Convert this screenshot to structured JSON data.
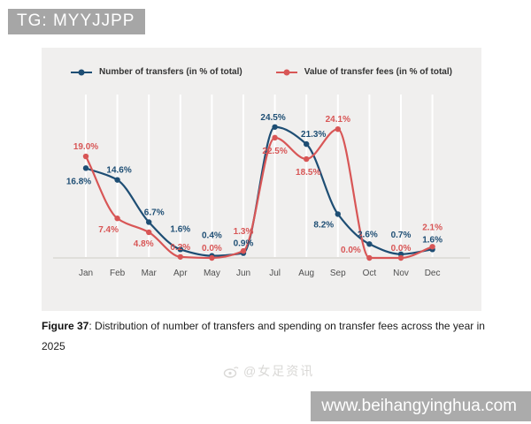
{
  "banner": {
    "text": "TG: MYYJJPP"
  },
  "footer_bar": {
    "text": "www.beihangyinghua.com"
  },
  "watermark": {
    "icon": "weibo-icon",
    "text": "@女足资讯"
  },
  "caption": {
    "bold": "Figure 37",
    "text": ": Distribution of number of transfers and spending on transfer fees across the year in 2025"
  },
  "chart_data": {
    "type": "line",
    "title": "",
    "xlabel": "",
    "ylabel": "",
    "ylim": [
      0,
      27
    ],
    "grid": "vertical-white-gridlines",
    "legend_position": "top-center",
    "value_suffix": "%",
    "categories": [
      "Jan",
      "Feb",
      "Mar",
      "Apr",
      "May",
      "Jun",
      "Jul",
      "Aug",
      "Sep",
      "Oct",
      "Nov",
      "Dec"
    ],
    "series": [
      {
        "name": "Number of transfers (in % of total)",
        "color": "#1e4e74",
        "values": [
          16.8,
          14.6,
          6.7,
          1.6,
          0.4,
          0.9,
          24.5,
          21.3,
          8.2,
          2.6,
          0.7,
          1.6
        ],
        "label_offsets": [
          [
            -8,
            18
          ],
          [
            2,
            -8
          ],
          [
            6,
            -8
          ],
          [
            0,
            -20
          ],
          [
            0,
            -20
          ],
          [
            0,
            -8
          ],
          [
            -2,
            -8
          ],
          [
            8,
            -8
          ],
          [
            -16,
            15
          ],
          [
            -2,
            -8
          ],
          [
            0,
            -19
          ],
          [
            0,
            -8
          ]
        ]
      },
      {
        "name": "Value of transfer fees (in % of total)",
        "color": "#d85656",
        "values": [
          19.0,
          7.4,
          4.8,
          0.2,
          0.0,
          1.3,
          22.5,
          18.5,
          24.1,
          0.0,
          0.0,
          2.1
        ],
        "label_offsets": [
          [
            0,
            -8
          ],
          [
            -10,
            16
          ],
          [
            -6,
            16
          ],
          [
            0,
            -8
          ],
          [
            0,
            -8
          ],
          [
            0,
            -19
          ],
          [
            0,
            18
          ],
          [
            2,
            18
          ],
          [
            0,
            -8
          ],
          [
            -21,
            -6
          ],
          [
            0,
            -8
          ],
          [
            0,
            -19
          ]
        ]
      }
    ]
  }
}
